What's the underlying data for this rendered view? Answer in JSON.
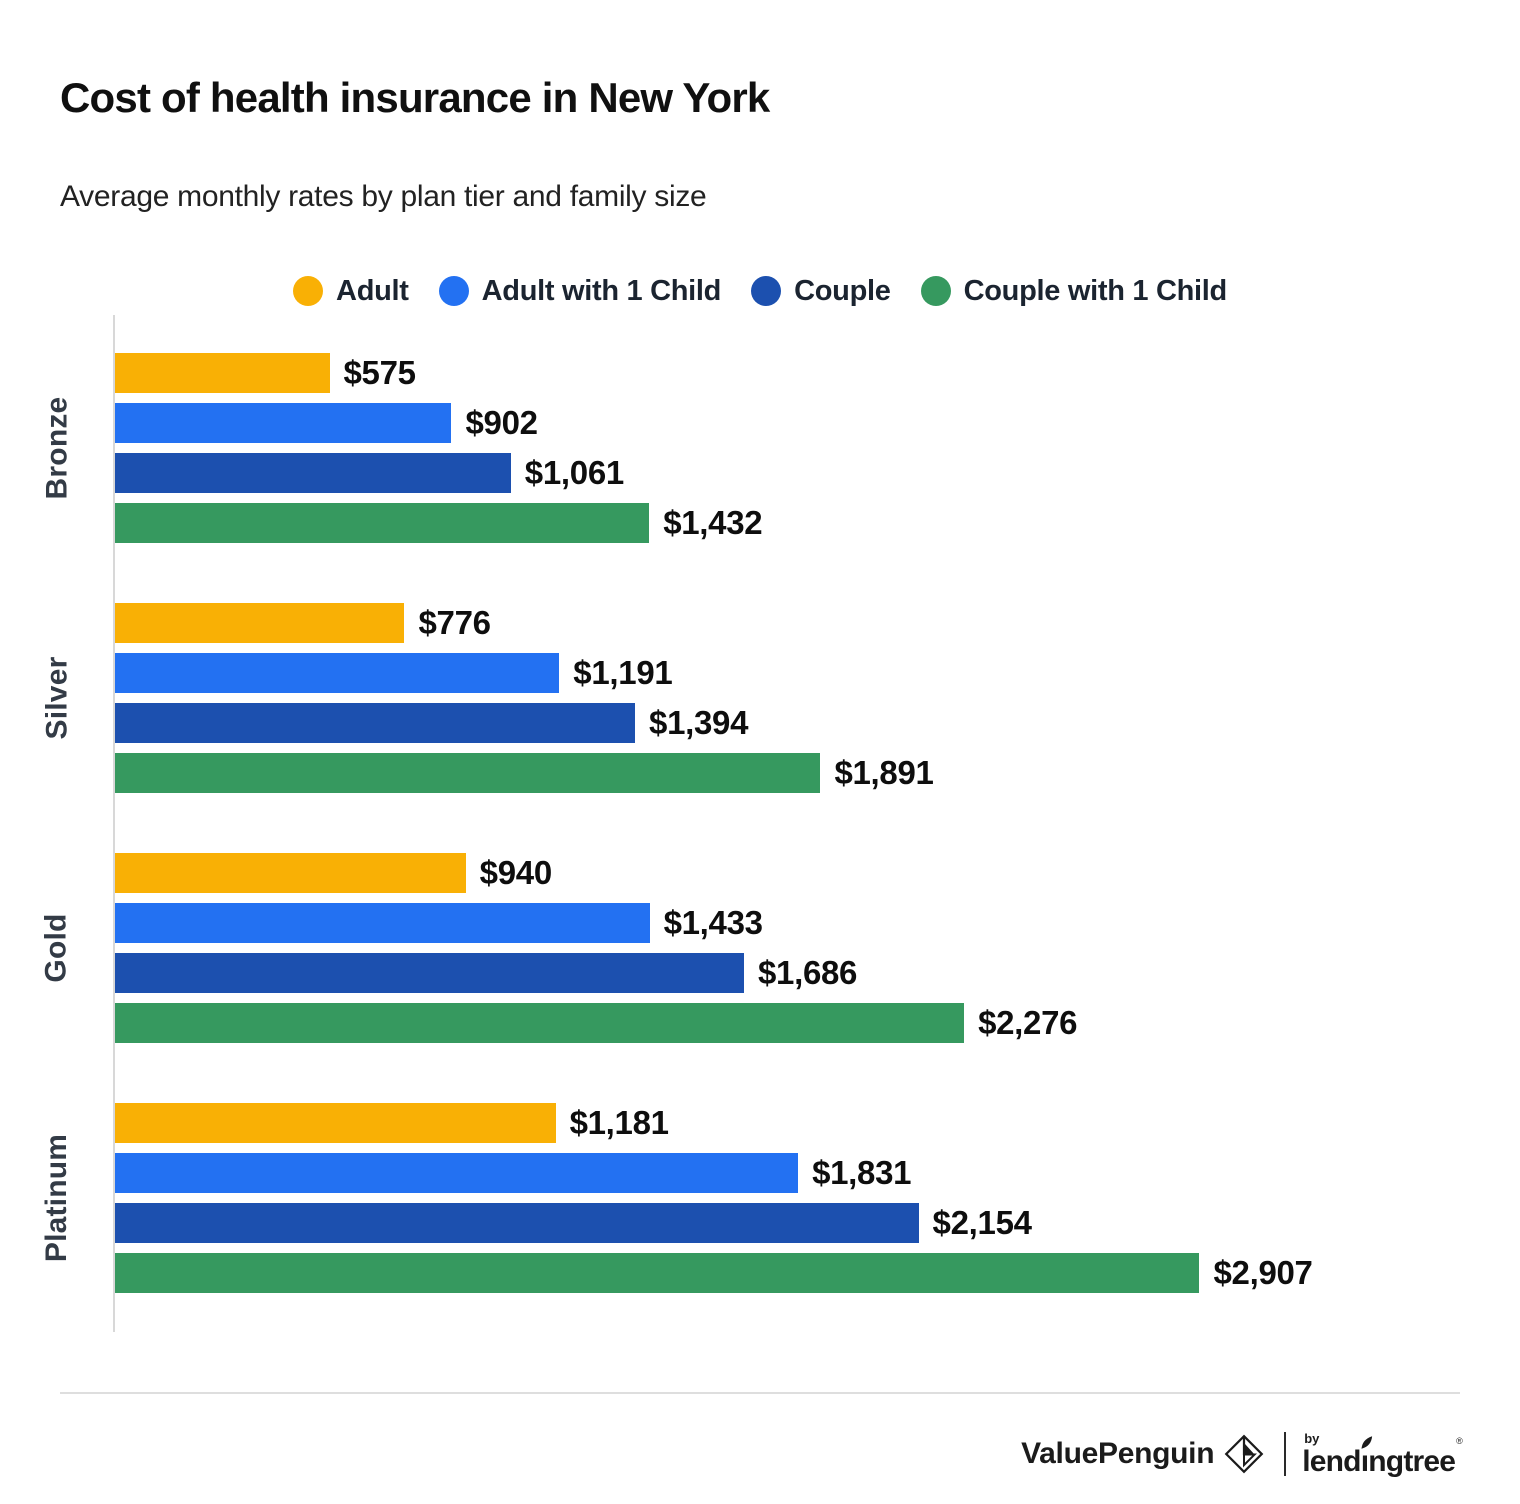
{
  "header": {
    "title": "Cost of health insurance in New York",
    "subtitle": "Average monthly rates by plan tier and family size"
  },
  "chart_data": {
    "type": "bar",
    "orientation": "horizontal",
    "title": "Cost of health insurance in New York",
    "subtitle": "Average monthly rates by plan tier and family size",
    "categories": [
      "Bronze",
      "Silver",
      "Gold",
      "Platinum"
    ],
    "series": [
      {
        "name": "Adult",
        "color": "#F9B005",
        "values": [
          575,
          776,
          940,
          1181
        ],
        "labels": [
          "$575",
          "$776",
          "$940",
          "$1,181"
        ]
      },
      {
        "name": "Adult with 1 Child",
        "color": "#2371F2",
        "values": [
          902,
          1191,
          1433,
          1831
        ],
        "labels": [
          "$902",
          "$1,191",
          "$1,433",
          "$1,831"
        ]
      },
      {
        "name": "Couple",
        "color": "#1C50AF",
        "values": [
          1061,
          1394,
          1686,
          2154
        ],
        "labels": [
          "$1,061",
          "$1,394",
          "$1,686",
          "$2,154"
        ]
      },
      {
        "name": "Couple with 1 Child",
        "color": "#36995F",
        "values": [
          1432,
          1891,
          2276,
          2907
        ],
        "labels": [
          "$1,432",
          "$1,891",
          "$2,276",
          "$2,907"
        ]
      }
    ],
    "value_prefix": "$",
    "xlim": [
      0,
      3600
    ],
    "grid": false,
    "legend_position": "top",
    "axis_color": "#D8D8D8"
  },
  "footer": {
    "brand": "ValuePenguin",
    "by_label": "by",
    "partner": "lendingtree",
    "trademark": "®"
  }
}
